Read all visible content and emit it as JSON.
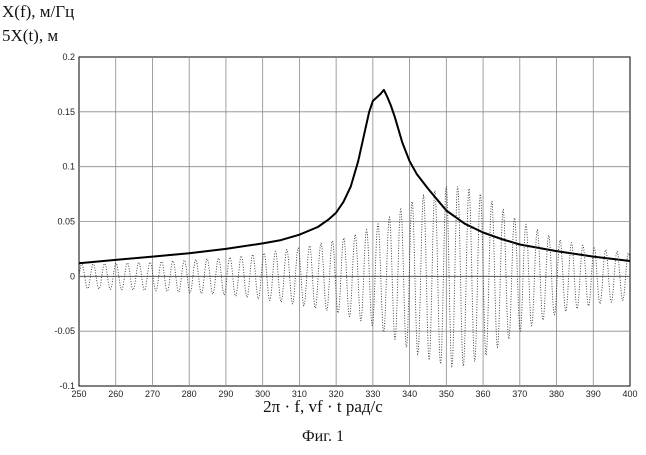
{
  "chart_data": {
    "type": "line",
    "ylabel_lines": [
      "X(f), м/Гц",
      "5X(t), м"
    ],
    "xlabel": "2π · f, vf · t  рад/с",
    "caption": "Фиг. 1",
    "xlim": [
      250,
      400
    ],
    "ylim": [
      -0.1,
      0.2
    ],
    "grid": true,
    "x_ticks": [
      "250",
      "260",
      "270",
      "280",
      "290",
      "300",
      "310",
      "320",
      "330",
      "340",
      "350",
      "360",
      "370",
      "380",
      "390",
      "400"
    ],
    "y_ticks": [
      "0.2",
      "0.15",
      "0.1",
      "0.05",
      "0",
      "-0.05",
      "-0.1"
    ],
    "series": [
      {
        "style": "solid",
        "color": "#000000",
        "x": [
          250,
          260,
          270,
          280,
          290,
          300,
          305,
          310,
          315,
          318,
          320,
          322,
          324,
          326,
          328,
          329,
          330,
          331,
          332,
          333,
          334,
          335,
          336,
          338,
          340,
          342,
          345,
          348,
          350,
          355,
          360,
          365,
          370,
          380,
          390,
          400
        ],
        "y": [
          0.012,
          0.015,
          0.018,
          0.021,
          0.025,
          0.03,
          0.033,
          0.038,
          0.045,
          0.052,
          0.058,
          0.068,
          0.082,
          0.105,
          0.135,
          0.15,
          0.16,
          0.163,
          0.166,
          0.17,
          0.163,
          0.155,
          0.145,
          0.122,
          0.105,
          0.093,
          0.08,
          0.068,
          0.06,
          0.048,
          0.04,
          0.034,
          0.029,
          0.023,
          0.018,
          0.014
        ]
      },
      {
        "style": "dotted",
        "color": "#333333",
        "envelope": {
          "x": [
            250,
            260,
            270,
            280,
            290,
            300,
            310,
            320,
            325,
            330,
            335,
            340,
            345,
            350,
            355,
            360,
            365,
            370,
            380,
            390,
            400
          ],
          "amp": [
            0.011,
            0.012,
            0.013,
            0.015,
            0.017,
            0.021,
            0.026,
            0.033,
            0.038,
            0.045,
            0.055,
            0.067,
            0.076,
            0.082,
            0.082,
            0.074,
            0.062,
            0.05,
            0.034,
            0.026,
            0.021
          ]
        },
        "period": 3.1
      }
    ]
  }
}
